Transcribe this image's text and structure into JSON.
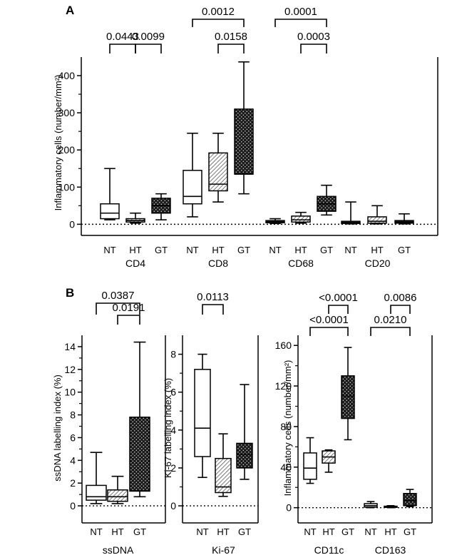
{
  "chart_data": [
    {
      "panel": "A",
      "type": "box",
      "ylabel": "Inflammatory cells (number/mm²)",
      "ylim": [
        -30,
        450
      ],
      "yticks": [
        0,
        100,
        200,
        300,
        400
      ],
      "tick_labels": [
        "0",
        "100",
        "200",
        "300",
        "400"
      ],
      "zero_line": "dotted",
      "categories": [
        "NT",
        "HT",
        "GT"
      ],
      "groups": [
        {
          "name": "CD4",
          "boxes": [
            {
              "category": "NT",
              "min": 12,
              "q1": 15,
              "median": 30,
              "q3": 55,
              "max": 150
            },
            {
              "category": "HT",
              "min": 3,
              "q1": 6,
              "median": 10,
              "q3": 15,
              "max": 30
            },
            {
              "category": "GT",
              "min": 12,
              "q1": 30,
              "median": 50,
              "q3": 70,
              "max": 82
            }
          ]
        },
        {
          "name": "CD8",
          "boxes": [
            {
              "category": "NT",
              "min": 20,
              "q1": 55,
              "median": 75,
              "q3": 145,
              "max": 245
            },
            {
              "category": "HT",
              "min": 60,
              "q1": 90,
              "median": 108,
              "q3": 192,
              "max": 245
            },
            {
              "category": "GT",
              "min": 82,
              "q1": 135,
              "median": 135,
              "q3": 310,
              "max": 437
            }
          ]
        },
        {
          "name": "CD68",
          "boxes": [
            {
              "category": "NT",
              "min": 2,
              "q1": 4,
              "median": 7,
              "q3": 10,
              "max": 15
            },
            {
              "category": "HT",
              "min": 3,
              "q1": 6,
              "median": 12,
              "q3": 22,
              "max": 32
            },
            {
              "category": "GT",
              "min": 25,
              "q1": 35,
              "median": 55,
              "q3": 75,
              "max": 105
            }
          ]
        },
        {
          "name": "CD20",
          "boxes": [
            {
              "category": "NT",
              "min": 1,
              "q1": 2,
              "median": 5,
              "q3": 8,
              "max": 60
            },
            {
              "category": "HT",
              "min": 1,
              "q1": 3,
              "median": 8,
              "q3": 20,
              "max": 50
            },
            {
              "category": "GT",
              "min": 1,
              "q1": 3,
              "median": 6,
              "q3": 10,
              "max": 28
            }
          ]
        }
      ],
      "p_values": [
        {
          "group": "CD4",
          "from": "NT",
          "to": "HT",
          "label": "0.0443"
        },
        {
          "group": "CD4",
          "from": "HT",
          "to": "GT",
          "label": "0.0099"
        },
        {
          "group": "CD8",
          "from": "NT",
          "to": "GT",
          "label": "0.0012"
        },
        {
          "group": "CD8",
          "from": "HT",
          "to": "GT",
          "label": "0.0158"
        },
        {
          "group": "CD68",
          "from": "NT",
          "to": "GT",
          "label": "0.0001"
        },
        {
          "group": "CD68",
          "from": "HT",
          "to": "GT",
          "label": "0.0003"
        }
      ]
    },
    {
      "panel": "B",
      "type": "box",
      "ylabel": "ssDNA labelling index (%)",
      "ylim": [
        -1.5,
        15
      ],
      "yticks": [
        0,
        2,
        4,
        6,
        8,
        10,
        12,
        14
      ],
      "tick_labels": [
        "0",
        "2",
        "4",
        "6",
        "8",
        "10",
        "12",
        "14"
      ],
      "zero_line": "dotted",
      "categories": [
        "NT",
        "HT",
        "GT"
      ],
      "groups": [
        {
          "name": "ssDNA",
          "boxes": [
            {
              "category": "NT",
              "min": 0.2,
              "q1": 0.5,
              "median": 0.8,
              "q3": 1.8,
              "max": 4.7
            },
            {
              "category": "HT",
              "min": 0.2,
              "q1": 0.4,
              "median": 0.8,
              "q3": 1.4,
              "max": 2.6
            },
            {
              "category": "GT",
              "min": 0.8,
              "q1": 1.3,
              "median": 1.3,
              "q3": 7.8,
              "max": 14.4
            }
          ]
        }
      ],
      "p_values": [
        {
          "group": "ssDNA",
          "from": "NT",
          "to": "GT",
          "label": "0.0387"
        },
        {
          "group": "ssDNA",
          "from": "HT",
          "to": "GT",
          "label": "0.0191"
        }
      ]
    },
    {
      "panel": "B",
      "type": "box",
      "ylabel": "Ki-67 labelling index (%)",
      "ylim": [
        -0.9,
        9
      ],
      "yticks": [
        0,
        2,
        4,
        6,
        8
      ],
      "tick_labels": [
        "0",
        "2",
        "4",
        "6",
        "8"
      ],
      "zero_line": "dotted",
      "categories": [
        "NT",
        "HT",
        "GT"
      ],
      "groups": [
        {
          "name": "Ki-67",
          "boxes": [
            {
              "category": "NT",
              "min": 1.5,
              "q1": 2.6,
              "median": 4.1,
              "q3": 7.2,
              "max": 8.0
            },
            {
              "category": "HT",
              "min": 0.5,
              "q1": 0.7,
              "median": 1.0,
              "q3": 2.5,
              "max": 3.8
            },
            {
              "category": "GT",
              "min": 1.4,
              "q1": 2.0,
              "median": 2.7,
              "q3": 3.3,
              "max": 6.4
            }
          ]
        }
      ],
      "p_values": [
        {
          "group": "Ki-67",
          "from": "NT",
          "to": "HT",
          "label": "0.0113"
        }
      ]
    },
    {
      "panel": "B",
      "type": "box",
      "ylabel": "Inflammatory cells (number/mm²)",
      "ylim": [
        -15,
        170
      ],
      "yticks": [
        0,
        40,
        80,
        120,
        160
      ],
      "tick_labels": [
        "0",
        "40",
        "80",
        "120",
        "160"
      ],
      "zero_line": "dotted",
      "categories": [
        "NT",
        "HT",
        "GT"
      ],
      "groups": [
        {
          "name": "CD11c",
          "boxes": [
            {
              "category": "NT",
              "min": 24,
              "q1": 28,
              "median": 39,
              "q3": 54,
              "max": 69
            },
            {
              "category": "HT",
              "min": 35,
              "q1": 44,
              "median": 50,
              "q3": 56,
              "max": 57
            },
            {
              "category": "GT",
              "min": 67,
              "q1": 88,
              "median": 110,
              "q3": 130,
              "max": 158
            }
          ]
        },
        {
          "name": "CD163",
          "boxes": [
            {
              "category": "NT",
              "min": 0,
              "q1": 0.5,
              "median": 2,
              "q3": 4,
              "max": 6
            },
            {
              "category": "HT",
              "min": 0,
              "q1": 0.3,
              "median": 1,
              "q3": 1.5,
              "max": 2
            },
            {
              "category": "GT",
              "min": 1,
              "q1": 2,
              "median": 7,
              "q3": 14,
              "max": 18
            }
          ]
        }
      ],
      "p_values": [
        {
          "group": "CD11c",
          "from": "NT",
          "to": "GT",
          "label": "<0.0001"
        },
        {
          "group": "CD11c",
          "from": "HT",
          "to": "GT",
          "label": "<0.0001"
        },
        {
          "group": "CD163",
          "from": "NT",
          "to": "GT",
          "label": "0.0210"
        },
        {
          "group": "CD163",
          "from": "HT",
          "to": "GT",
          "label": "0.0086"
        }
      ]
    }
  ],
  "panel_labels": [
    "A",
    "B"
  ],
  "fills": {
    "NT": "white",
    "HT": "diagonal-hatch",
    "GT": "dark-dotted"
  }
}
